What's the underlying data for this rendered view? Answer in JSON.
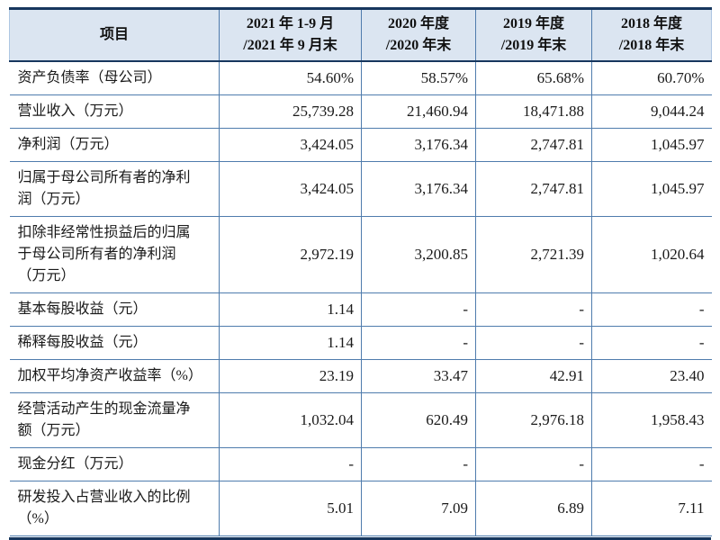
{
  "colors": {
    "header_bg": "#dbe5f1",
    "grid_line": "#4f7cad",
    "heavy_line": "#17375e",
    "text": "#1a1a1a"
  },
  "table": {
    "header": {
      "item_label": "项目",
      "periods": [
        {
          "line1": "2021 年 1-9 月",
          "line2": "/2021 年 9 月末"
        },
        {
          "line1": "2020 年度",
          "line2": "/2020 年末"
        },
        {
          "line1": "2019 年度",
          "line2": "/2019 年末"
        },
        {
          "line1": "2018 年度",
          "line2": "/2018 年末"
        }
      ]
    },
    "rows": [
      {
        "label": "资产负债率（母公司）",
        "values": [
          "54.60%",
          "58.57%",
          "65.68%",
          "60.70%"
        ]
      },
      {
        "label": "营业收入（万元）",
        "values": [
          "25,739.28",
          "21,460.94",
          "18,471.88",
          "9,044.24"
        ]
      },
      {
        "label": "净利润（万元）",
        "values": [
          "3,424.05",
          "3,176.34",
          "2,747.81",
          "1,045.97"
        ]
      },
      {
        "label": "归属于母公司所有者的净利润（万元）",
        "values": [
          "3,424.05",
          "3,176.34",
          "2,747.81",
          "1,045.97"
        ]
      },
      {
        "label": "扣除非经常性损益后的归属于母公司所有者的净利润（万元）",
        "values": [
          "2,972.19",
          "3,200.85",
          "2,721.39",
          "1,020.64"
        ]
      },
      {
        "label": "基本每股收益（元）",
        "values": [
          "1.14",
          "-",
          "-",
          "-"
        ]
      },
      {
        "label": "稀释每股收益（元）",
        "values": [
          "1.14",
          "-",
          "-",
          "-"
        ]
      },
      {
        "label": "加权平均净资产收益率（%）",
        "values": [
          "23.19",
          "33.47",
          "42.91",
          "23.40"
        ]
      },
      {
        "label": "经营活动产生的现金流量净额（万元）",
        "values": [
          "1,032.04",
          "620.49",
          "2,976.18",
          "1,958.43"
        ]
      },
      {
        "label": "现金分红（万元）",
        "values": [
          "-",
          "-",
          "-",
          "-"
        ]
      },
      {
        "label": "研发投入占营业收入的比例（%）",
        "values": [
          "5.01",
          "7.09",
          "6.89",
          "7.11"
        ]
      }
    ]
  }
}
